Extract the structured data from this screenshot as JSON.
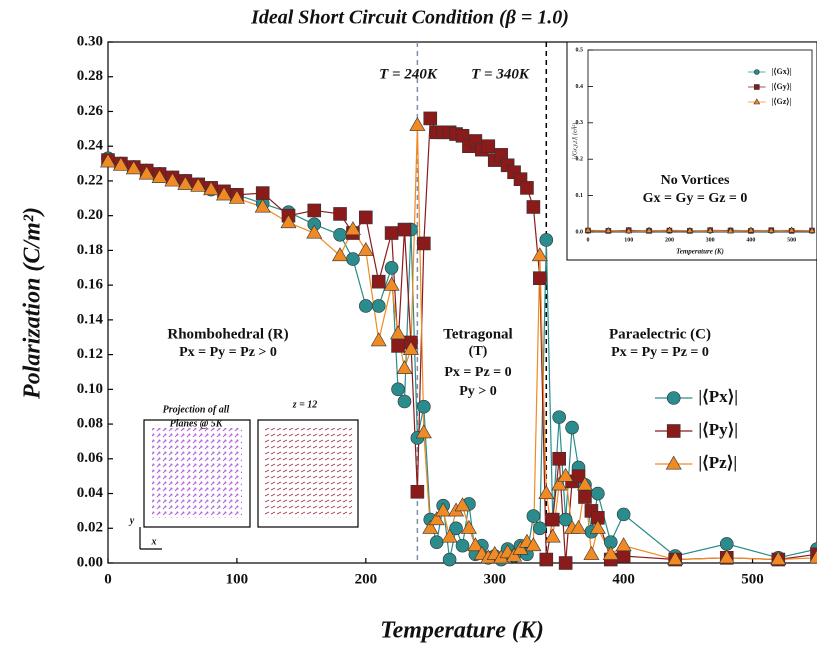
{
  "chart_data": [
    {
      "type": "line",
      "title": "Ideal Short Circuit Condition (β = 1.0)",
      "x_label": "Temperature (K)",
      "y_label": "Polarization (C/m²)",
      "xlim": [
        0,
        550
      ],
      "xticks": [
        0,
        100,
        200,
        300,
        400,
        500
      ],
      "ylim": [
        0,
        0.3
      ],
      "yticks": [
        {
          "value": 0,
          "label": "0.00"
        },
        {
          "value": 0.02,
          "label": "0.02"
        },
        {
          "value": 0.04,
          "label": "0.04"
        },
        {
          "value": 0.06,
          "label": "0.06"
        },
        {
          "value": 0.08,
          "label": "0.08"
        },
        {
          "value": 0.1,
          "label": "0.10"
        },
        {
          "value": 0.12,
          "label": "0.12"
        },
        {
          "value": 0.14,
          "label": "0.14"
        },
        {
          "value": 0.16,
          "label": "0.16"
        },
        {
          "value": 0.18,
          "label": "0.18"
        },
        {
          "value": 0.2,
          "label": "0.20"
        },
        {
          "value": 0.22,
          "label": "0.22"
        },
        {
          "value": 0.24,
          "label": "0.24"
        },
        {
          "value": 0.26,
          "label": "0.26"
        },
        {
          "value": 0.28,
          "label": "0.28"
        },
        {
          "value": 0.3,
          "label": "0.30"
        }
      ],
      "vlines": [
        {
          "x": 240,
          "color": "#7f8fa6"
        },
        {
          "x": 340,
          "color": "#000000"
        }
      ],
      "legend": "lower right",
      "x": [
        0,
        10,
        20,
        30,
        40,
        50,
        60,
        70,
        80,
        90,
        100,
        120,
        140,
        160,
        180,
        190,
        200,
        210,
        220,
        225,
        230,
        235,
        240,
        245,
        250,
        255,
        260,
        265,
        270,
        275,
        280,
        285,
        290,
        295,
        300,
        305,
        310,
        315,
        320,
        325,
        330,
        335,
        340,
        345,
        350,
        355,
        360,
        365,
        370,
        375,
        380,
        390,
        400,
        440,
        480,
        520,
        550
      ],
      "series": [
        {
          "name": "|⟨Px⟩|",
          "color": "#2a8c8c",
          "marker": "circle",
          "values": [
            0.233,
            0.23,
            0.228,
            0.226,
            0.224,
            0.222,
            0.22,
            0.218,
            0.215,
            0.213,
            0.212,
            0.207,
            0.202,
            0.195,
            0.189,
            0.175,
            0.148,
            0.148,
            0.17,
            0.1,
            0.093,
            0.192,
            0.072,
            0.09,
            0.025,
            0.012,
            0.033,
            0.002,
            0.02,
            0.01,
            0.034,
            0.005,
            0.01,
            0.003,
            0.004,
            0.002,
            0.008,
            0.004,
            0.01,
            0.005,
            0.027,
            0.02,
            0.186,
            0.025,
            0.084,
            0.025,
            0.078,
            0.055,
            0.045,
            0.018,
            0.04,
            0.012,
            0.028,
            0.004,
            0.011,
            0.003,
            0.008
          ]
        },
        {
          "name": "|⟨Py⟩|",
          "color": "#8b1a1a",
          "marker": "square",
          "values": [
            0.232,
            0.23,
            0.228,
            0.226,
            0.224,
            0.222,
            0.22,
            0.218,
            0.216,
            0.214,
            0.212,
            0.213,
            0.2,
            0.203,
            0.201,
            0.19,
            0.199,
            0.162,
            0.19,
            0.125,
            0.192,
            0.127,
            0.041,
            0.184,
            0.256,
            0.248,
            0.248,
            0.248,
            0.247,
            0.246,
            0.24,
            0.243,
            0.238,
            0.24,
            0.232,
            0.235,
            0.229,
            0.225,
            0.221,
            0.216,
            0.205,
            0.164,
            0.002,
            0.025,
            0.06,
            0.0,
            0.047,
            0.05,
            0.038,
            0.03,
            0.026,
            0.002,
            0.004,
            0.002,
            0.003,
            0.002,
            0.005
          ]
        },
        {
          "name": "|⟨Pz⟩|",
          "color": "#f08a24",
          "marker": "triangle",
          "values": [
            0.231,
            0.229,
            0.227,
            0.224,
            0.222,
            0.22,
            0.218,
            0.217,
            0.215,
            0.212,
            0.21,
            0.205,
            0.196,
            0.19,
            0.177,
            0.192,
            0.18,
            0.128,
            0.16,
            0.132,
            0.112,
            0.123,
            0.252,
            0.075,
            0.02,
            0.025,
            0.03,
            0.015,
            0.03,
            0.033,
            0.02,
            0.01,
            0.005,
            0.003,
            0.005,
            0.003,
            0.006,
            0.004,
            0.008,
            0.012,
            0.01,
            0.177,
            0.04,
            0.015,
            0.045,
            0.05,
            0.02,
            0.02,
            0.045,
            0.005,
            0.02,
            0.005,
            0.01,
            0.002,
            0.003,
            0.002,
            0.003
          ]
        }
      ],
      "annotations": [
        "T = 240K",
        "T = 340K",
        "Rhombohedral (R)",
        "Px = Py = Pz > 0",
        "Tetragonal",
        "(T)",
        "Px = Pz = 0",
        "Py > 0",
        "Paraelectric (C)",
        "Px = Py = Pz = 0",
        "Projection of all",
        "Planes @ 5K",
        "z = 12",
        "x",
        "y"
      ]
    },
    {
      "type": "line",
      "x_label": "Temperature (K)",
      "y_label": "|⟨Gx,y,z⟩| (eÅ²)",
      "xlim": [
        0,
        550
      ],
      "xticks": [
        0,
        100,
        200,
        300,
        400,
        500
      ],
      "ylim": [
        0,
        0.5
      ],
      "yticks": [
        {
          "value": 0,
          "label": "0.0"
        },
        {
          "value": 0.1,
          "label": "0.1"
        },
        {
          "value": 0.2,
          "label": "0.2"
        },
        {
          "value": 0.3,
          "label": "0.3"
        },
        {
          "value": 0.4,
          "label": "0.4"
        },
        {
          "value": 0.5,
          "label": "0.5"
        }
      ],
      "legend": "upper right",
      "x": [
        0,
        50,
        100,
        150,
        200,
        250,
        300,
        350,
        400,
        450,
        500,
        550
      ],
      "series": [
        {
          "name": "|⟨Gx⟩|",
          "color": "#2a8c8c",
          "marker": "circle",
          "values": [
            0.003,
            0.004,
            0.003,
            0.005,
            0.003,
            0.004,
            0.003,
            0.005,
            0.004,
            0.003,
            0.004,
            0.003
          ]
        },
        {
          "name": "|⟨Gy⟩|",
          "color": "#8b1a1a",
          "marker": "square",
          "values": [
            0.004,
            0.003,
            0.005,
            0.003,
            0.004,
            0.003,
            0.005,
            0.004,
            0.003,
            0.005,
            0.003,
            0.004
          ]
        },
        {
          "name": "|⟨Gz⟩|",
          "color": "#f08a24",
          "marker": "triangle",
          "values": [
            0.005,
            0.004,
            0.003,
            0.004,
            0.005,
            0.004,
            0.004,
            0.003,
            0.005,
            0.004,
            0.005,
            0.004
          ]
        }
      ],
      "annotations": [
        "No Vortices",
        "Gx = Gy = Gz = 0"
      ]
    }
  ]
}
